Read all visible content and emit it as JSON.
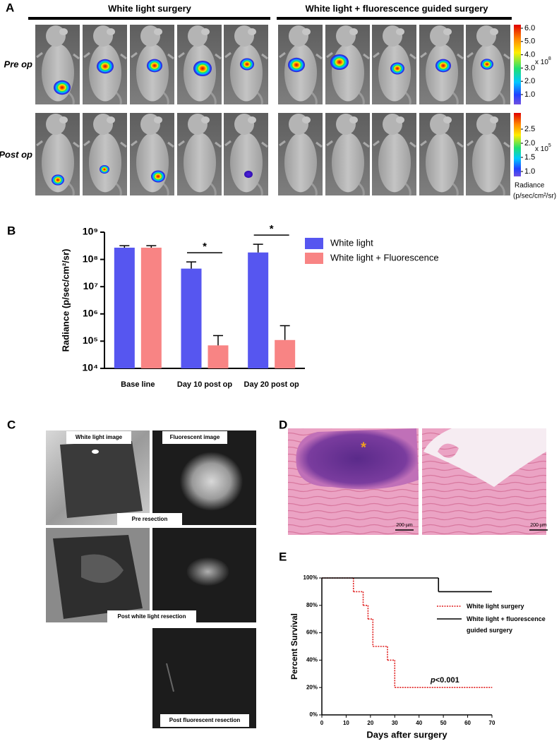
{
  "panel_labels": [
    "A",
    "B",
    "C",
    "D",
    "E"
  ],
  "panel_a": {
    "group_titles": [
      "White light surgery",
      "White light + fluorescence guided surgery"
    ],
    "row_labels": [
      "Pre op",
      "Post op"
    ],
    "colorbars": [
      {
        "ticks": [
          {
            "value": 1,
            "label": "1.0"
          },
          {
            "value": 2,
            "label": "2.0"
          },
          {
            "value": 3,
            "label": "3.0"
          },
          {
            "value": 4,
            "label": "4.0"
          },
          {
            "value": 5,
            "label": "5.0"
          },
          {
            "value": 6,
            "label": "6.0"
          }
        ],
        "multiplier": "x 10",
        "exponent": "8"
      },
      {
        "ticks": [
          {
            "value": 1,
            "label": "1.0"
          },
          {
            "value": 1.5,
            "label": "1.5"
          },
          {
            "value": 2,
            "label": "2.0"
          },
          {
            "value": 2.5,
            "label": "2.5"
          }
        ],
        "multiplier": "x 10",
        "exponent": "5"
      }
    ],
    "colorbar_title": "Radiance",
    "colorbar_unit": "(p/sec/cm²/sr)"
  },
  "chart_data": [
    {
      "type": "bar",
      "ylabel": "Radiance (p/sec/cm²/sr)",
      "categories": [
        "Base line",
        "Day 10 post op",
        "Day 20 post op"
      ],
      "series": [
        {
          "name": "White light",
          "color": "#5656f0",
          "values": [
            270000000,
            46000000,
            180000000
          ],
          "errors": [
            50000000,
            35000000,
            180000000
          ]
        },
        {
          "name": "White light + Fluorescence",
          "color": "#f88484",
          "values": [
            270000000,
            70000,
            110000
          ],
          "errors": [
            50000000,
            90000,
            260000
          ]
        }
      ],
      "yscale": "log",
      "ylim": [
        10000,
        1000000000
      ],
      "yticks": [
        {
          "value": 10000,
          "label": "10⁴"
        },
        {
          "value": 100000,
          "label": "10⁵"
        },
        {
          "value": 1000000,
          "label": "10⁶"
        },
        {
          "value": 10000000,
          "label": "10⁷"
        },
        {
          "value": 100000000,
          "label": "10⁸"
        },
        {
          "value": 1000000000,
          "label": "10⁹"
        }
      ],
      "annotations": [
        "*",
        "*"
      ],
      "legend": "right"
    },
    {
      "type": "line",
      "step": true,
      "xlabel": "Days after surgery",
      "ylabel": "Percent Survival",
      "xlim": [
        0,
        70
      ],
      "ylim": [
        0,
        100
      ],
      "xticks": [
        0,
        10,
        20,
        30,
        40,
        50,
        60,
        70
      ],
      "yticks": [
        {
          "value": 0,
          "label": "0%"
        },
        {
          "value": 20,
          "label": "20%"
        },
        {
          "value": 40,
          "label": "40%"
        },
        {
          "value": 60,
          "label": "60%"
        },
        {
          "value": 80,
          "label": "80%"
        },
        {
          "value": 100,
          "label": "100%"
        }
      ],
      "series": [
        {
          "name": "White light surgery",
          "color": "#e02020",
          "dash": true,
          "x": [
            0,
            13,
            17,
            19,
            21,
            27,
            30,
            70
          ],
          "values": [
            100,
            90,
            80,
            70,
            50,
            40,
            20,
            20
          ]
        },
        {
          "name": "White light + fluorescence guided surgery",
          "color": "#000000",
          "dash": false,
          "x": [
            0,
            48,
            70
          ],
          "values": [
            100,
            90,
            90
          ]
        }
      ],
      "annotation": [
        "p",
        "<0.001"
      ],
      "legend": "right"
    }
  ],
  "panel_c": {
    "labels": [
      "White light image",
      "Fluorescent image",
      "Pre resection",
      "Post white light resection",
      "Post fluorescent resection"
    ]
  },
  "panel_d": {
    "marker": "*",
    "scale_bars": [
      "200 µm",
      "200 µm"
    ]
  }
}
